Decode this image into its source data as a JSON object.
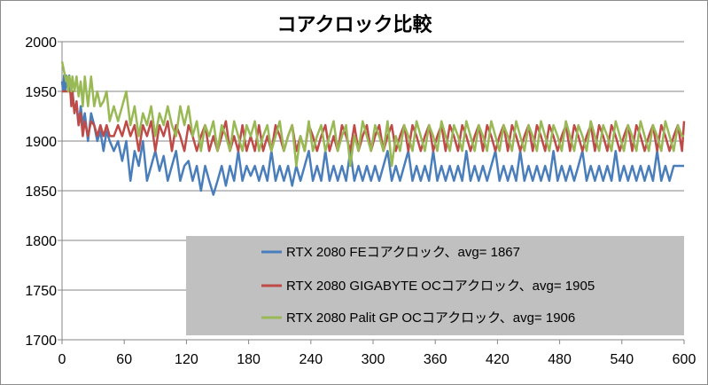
{
  "chart_data": {
    "type": "line",
    "title": "コアクロック比較",
    "xlabel": "",
    "ylabel": "",
    "xlim": [
      0,
      600
    ],
    "ylim": [
      1700,
      2000
    ],
    "x_ticks": [
      0,
      60,
      120,
      180,
      240,
      300,
      360,
      420,
      480,
      540,
      600
    ],
    "y_ticks": [
      1700,
      1750,
      1800,
      1850,
      1900,
      1950,
      2000
    ],
    "grid": "horizontal",
    "legend_position": "bottom-right",
    "legend_background": "#c0c0c0",
    "series": [
      {
        "name": "RTX 2080 FEコアクロック、avg= 1867",
        "color": "#4a7ebb",
        "x": [
          0,
          1,
          2,
          3,
          4,
          5,
          6,
          7,
          8,
          9,
          10,
          12,
          14,
          16,
          18,
          20,
          22,
          25,
          28,
          31,
          34,
          37,
          40,
          43,
          46,
          50,
          54,
          58,
          62,
          66,
          70,
          74,
          78,
          82,
          86,
          90,
          94,
          98,
          102,
          106,
          110,
          114,
          118,
          122,
          126,
          130,
          134,
          138,
          142,
          146,
          150,
          154,
          158,
          162,
          166,
          170,
          174,
          178,
          182,
          186,
          190,
          194,
          198,
          202,
          206,
          210,
          214,
          218,
          222,
          226,
          230,
          234,
          238,
          242,
          246,
          250,
          254,
          258,
          262,
          266,
          270,
          274,
          278,
          282,
          286,
          290,
          294,
          298,
          302,
          306,
          310,
          314,
          318,
          322,
          326,
          330,
          334,
          338,
          342,
          346,
          350,
          354,
          358,
          362,
          366,
          370,
          374,
          378,
          382,
          386,
          390,
          394,
          398,
          402,
          406,
          410,
          414,
          418,
          422,
          426,
          430,
          434,
          438,
          442,
          446,
          450,
          454,
          458,
          462,
          466,
          470,
          474,
          478,
          482,
          486,
          490,
          494,
          498,
          502,
          506,
          510,
          514,
          518,
          522,
          526,
          530,
          534,
          538,
          542,
          546,
          550,
          554,
          558,
          562,
          566,
          570,
          574,
          578,
          582,
          586,
          590,
          594,
          598,
          600
        ],
        "values": [
          1960,
          1950,
          1966,
          1950,
          1966,
          1958,
          1950,
          1966,
          1950,
          1940,
          1950,
          1930,
          1935,
          1916,
          1935,
          1916,
          1928,
          1900,
          1928,
          1916,
          1900,
          1910,
          1890,
          1910,
          1900,
          1890,
          1900,
          1880,
          1900,
          1860,
          1890,
          1875,
          1900,
          1860,
          1875,
          1890,
          1870,
          1885,
          1860,
          1875,
          1890,
          1860,
          1875,
          1880,
          1860,
          1875,
          1850,
          1875,
          1860,
          1846,
          1860,
          1875,
          1855,
          1875,
          1860,
          1890,
          1860,
          1875,
          1865,
          1875,
          1860,
          1875,
          1860,
          1890,
          1860,
          1875,
          1860,
          1875,
          1855,
          1875,
          1860,
          1875,
          1890,
          1860,
          1875,
          1860,
          1890,
          1860,
          1875,
          1860,
          1875,
          1860,
          1890,
          1860,
          1875,
          1860,
          1875,
          1860,
          1875,
          1860,
          1875,
          1890,
          1860,
          1875,
          1860,
          1875,
          1890,
          1860,
          1875,
          1860,
          1875,
          1860,
          1890,
          1860,
          1875,
          1860,
          1875,
          1860,
          1875,
          1860,
          1890,
          1860,
          1875,
          1860,
          1875,
          1860,
          1875,
          1890,
          1860,
          1875,
          1860,
          1875,
          1860,
          1890,
          1860,
          1875,
          1860,
          1875,
          1860,
          1875,
          1860,
          1890,
          1860,
          1875,
          1860,
          1875,
          1860,
          1875,
          1890,
          1860,
          1875,
          1860,
          1875,
          1860,
          1875,
          1860,
          1890,
          1860,
          1875,
          1860,
          1875,
          1860,
          1875,
          1860,
          1875,
          1860,
          1890,
          1860,
          1875,
          1860,
          1875,
          1875,
          1875,
          1875
        ]
      },
      {
        "name": "RTX 2080 GIGABYTE OCコアクロック、avg= 1905",
        "color": "#be4b48",
        "x": [
          0,
          1,
          2,
          3,
          4,
          5,
          6,
          7,
          8,
          9,
          10,
          12,
          14,
          16,
          18,
          20,
          22,
          25,
          28,
          31,
          34,
          37,
          40,
          43,
          46,
          50,
          54,
          58,
          62,
          66,
          70,
          74,
          78,
          82,
          86,
          90,
          94,
          98,
          102,
          106,
          110,
          114,
          118,
          122,
          126,
          130,
          134,
          138,
          142,
          146,
          150,
          154,
          158,
          162,
          166,
          170,
          174,
          178,
          182,
          186,
          190,
          194,
          198,
          202,
          206,
          210,
          214,
          218,
          222,
          226,
          230,
          234,
          238,
          242,
          246,
          250,
          254,
          258,
          262,
          266,
          270,
          274,
          278,
          282,
          286,
          290,
          294,
          298,
          302,
          306,
          310,
          314,
          318,
          322,
          326,
          330,
          334,
          338,
          342,
          346,
          350,
          354,
          358,
          362,
          366,
          370,
          374,
          378,
          382,
          386,
          390,
          394,
          398,
          402,
          406,
          410,
          414,
          418,
          422,
          426,
          430,
          434,
          438,
          442,
          446,
          450,
          454,
          458,
          462,
          466,
          470,
          474,
          478,
          482,
          486,
          490,
          494,
          498,
          502,
          506,
          510,
          514,
          518,
          522,
          526,
          530,
          534,
          538,
          542,
          546,
          550,
          554,
          558,
          562,
          566,
          570,
          574,
          578,
          582,
          586,
          590,
          594,
          598,
          600
        ],
        "values": [
          1950,
          1950,
          1950,
          1950,
          1950,
          1950,
          1950,
          1950,
          1950,
          1935,
          1950,
          1928,
          1940,
          1916,
          1928,
          1905,
          1920,
          1905,
          1920,
          1916,
          1905,
          1916,
          1905,
          1916,
          1905,
          1905,
          1916,
          1905,
          1920,
          1905,
          1916,
          1890,
          1916,
          1905,
          1920,
          1890,
          1916,
          1905,
          1920,
          1890,
          1916,
          1905,
          1890,
          1916,
          1905,
          1890,
          1905,
          1916,
          1890,
          1905,
          1890,
          1905,
          1920,
          1890,
          1905,
          1890,
          1916,
          1890,
          1905,
          1890,
          1916,
          1890,
          1905,
          1890,
          1916,
          1905,
          1890,
          1905,
          1916,
          1890,
          1905,
          1890,
          1916,
          1905,
          1890,
          1905,
          1916,
          1890,
          1905,
          1890,
          1916,
          1905,
          1890,
          1916,
          1890,
          1905,
          1916,
          1890,
          1905,
          1916,
          1890,
          1905,
          1916,
          1890,
          1905,
          1916,
          1890,
          1916,
          1905,
          1890,
          1905,
          1916,
          1890,
          1905,
          1916,
          1890,
          1916,
          1905,
          1890,
          1916,
          1905,
          1890,
          1905,
          1916,
          1890,
          1916,
          1905,
          1890,
          1905,
          1916,
          1890,
          1916,
          1905,
          1890,
          1905,
          1916,
          1890,
          1916,
          1905,
          1890,
          1916,
          1905,
          1890,
          1905,
          1916,
          1890,
          1916,
          1905,
          1890,
          1905,
          1916,
          1890,
          1916,
          1905,
          1890,
          1916,
          1905,
          1890,
          1905,
          1916,
          1890,
          1916,
          1905,
          1890,
          1905,
          1916,
          1890,
          1916,
          1905,
          1890,
          1905,
          1916,
          1890,
          1920
        ]
      },
      {
        "name": "RTX 2080 Palit GP OCコアクロック、avg= 1906",
        "color": "#98b954",
        "x": [
          0,
          1,
          2,
          3,
          4,
          5,
          6,
          7,
          8,
          9,
          10,
          12,
          14,
          16,
          18,
          20,
          22,
          25,
          28,
          31,
          34,
          37,
          40,
          43,
          46,
          50,
          54,
          58,
          62,
          66,
          70,
          74,
          78,
          82,
          86,
          90,
          94,
          98,
          102,
          106,
          110,
          114,
          118,
          122,
          126,
          130,
          134,
          138,
          142,
          146,
          150,
          154,
          158,
          162,
          166,
          170,
          174,
          178,
          182,
          186,
          190,
          194,
          198,
          202,
          206,
          210,
          214,
          218,
          222,
          226,
          230,
          234,
          238,
          242,
          246,
          250,
          254,
          258,
          262,
          266,
          270,
          274,
          278,
          282,
          286,
          290,
          294,
          298,
          302,
          306,
          310,
          314,
          318,
          322,
          326,
          330,
          334,
          338,
          342,
          346,
          350,
          354,
          358,
          362,
          366,
          370,
          374,
          378,
          382,
          386,
          390,
          394,
          398,
          402,
          406,
          410,
          414,
          418,
          422,
          426,
          430,
          434,
          438,
          442,
          446,
          450,
          454,
          458,
          462,
          466,
          470,
          474,
          478,
          482,
          486,
          490,
          494,
          498,
          502,
          506,
          510,
          514,
          518,
          522,
          526,
          530,
          534,
          538,
          542,
          546,
          550,
          554,
          558,
          562,
          566,
          570,
          574,
          578,
          582,
          586,
          590,
          594,
          598,
          600
        ],
        "values": [
          1980,
          1975,
          1970,
          1965,
          1960,
          1965,
          1950,
          1965,
          1960,
          1950,
          1965,
          1950,
          1965,
          1945,
          1960,
          1935,
          1965,
          1935,
          1965,
          1935,
          1950,
          1935,
          1940,
          1950,
          1920,
          1935,
          1920,
          1935,
          1950,
          1916,
          1935,
          1905,
          1928,
          1916,
          1935,
          1905,
          1928,
          1916,
          1935,
          1916,
          1905,
          1935,
          1916,
          1935,
          1905,
          1920,
          1890,
          1916,
          1905,
          1920,
          1890,
          1916,
          1905,
          1890,
          1920,
          1905,
          1890,
          1916,
          1905,
          1920,
          1890,
          1905,
          1916,
          1890,
          1905,
          1920,
          1890,
          1905,
          1916,
          1875,
          1905,
          1890,
          1920,
          1890,
          1905,
          1916,
          1890,
          1905,
          1920,
          1890,
          1905,
          1916,
          1875,
          1905,
          1890,
          1920,
          1905,
          1890,
          1916,
          1905,
          1890,
          1920,
          1875,
          1905,
          1890,
          1916,
          1905,
          1890,
          1920,
          1905,
          1890,
          1916,
          1905,
          1890,
          1920,
          1905,
          1890,
          1916,
          1905,
          1890,
          1920,
          1905,
          1890,
          1916,
          1905,
          1890,
          1920,
          1905,
          1890,
          1916,
          1905,
          1890,
          1920,
          1905,
          1890,
          1916,
          1905,
          1890,
          1920,
          1905,
          1890,
          1916,
          1905,
          1890,
          1920,
          1905,
          1890,
          1916,
          1905,
          1890,
          1920,
          1905,
          1890,
          1916,
          1905,
          1890,
          1920,
          1905,
          1890,
          1916,
          1905,
          1890,
          1920,
          1905,
          1890,
          1916,
          1905,
          1890,
          1920,
          1905,
          1890,
          1916,
          1905,
          1905
        ]
      }
    ]
  }
}
